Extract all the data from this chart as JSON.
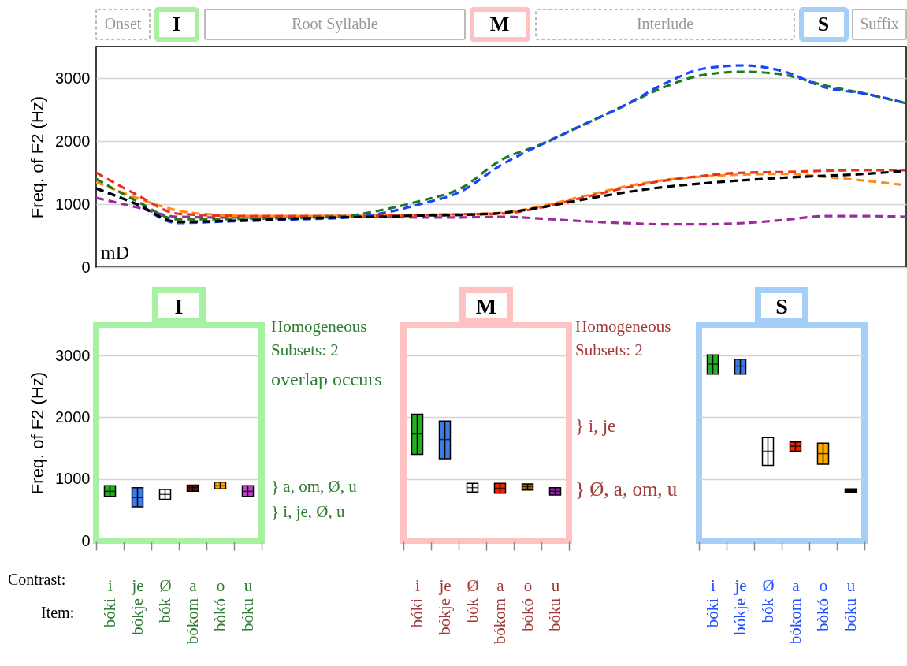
{
  "chart_data": [
    {
      "type": "line",
      "ylabel": "Freq. of F2 (Hz)",
      "categories": [
        null,
        null,
        null,
        null,
        null,
        null,
        null,
        null,
        null,
        null,
        null,
        null,
        null,
        null,
        null,
        null,
        null,
        null,
        null,
        null,
        null
      ],
      "ylim": [
        0,
        3500
      ],
      "yticks": [
        0,
        1000,
        2000,
        3000
      ],
      "grid": "y",
      "tick_labels": "y",
      "line_style": "dashed",
      "annotations": [
        "Onset",
        "I",
        "Root Syllable",
        "M",
        "Interlude",
        "S",
        "Suffix",
        "mD"
      ],
      "series": [
        {
          "color": "#9b2d9b",
          "values": [
            1100,
            950,
            800,
            790,
            790,
            800,
            810,
            800,
            790,
            790,
            800,
            770,
            730,
            700,
            680,
            680,
            700,
            750,
            810,
            810,
            800
          ]
        },
        {
          "color": "#ff8c1a",
          "values": [
            1350,
            1100,
            900,
            830,
            810,
            810,
            810,
            820,
            830,
            840,
            860,
            970,
            1120,
            1270,
            1380,
            1440,
            1470,
            1480,
            1430,
            1370,
            1300
          ]
        },
        {
          "color": "#e8331a",
          "values": [
            1500,
            1150,
            850,
            820,
            810,
            810,
            810,
            820,
            830,
            840,
            850,
            950,
            1100,
            1250,
            1370,
            1450,
            1500,
            1510,
            1530,
            1540,
            1540
          ]
        },
        {
          "color": "#1e7a1e",
          "values": [
            1400,
            1050,
            760,
            760,
            770,
            780,
            800,
            900,
            1050,
            1250,
            1700,
            1950,
            2250,
            2550,
            2850,
            3050,
            3100,
            3050,
            2880,
            2750,
            2600
          ]
        },
        {
          "color": "#1a44ff",
          "values": [
            1250,
            1000,
            700,
            720,
            740,
            760,
            780,
            850,
            1000,
            1200,
            1620,
            1950,
            2250,
            2550,
            2900,
            3150,
            3200,
            3100,
            2850,
            2750,
            2600
          ]
        },
        {
          "color": "#000000",
          "values": [
            1250,
            1000,
            720,
            730,
            750,
            770,
            790,
            800,
            820,
            830,
            860,
            950,
            1070,
            1180,
            1270,
            1330,
            1380,
            1420,
            1450,
            1480,
            1530
          ]
        }
      ]
    },
    {
      "type": "box",
      "title": "I",
      "ylabel": "Freq. of F2 (Hz)",
      "categories": [
        "i",
        "je",
        "Ø",
        "a",
        "o",
        "u"
      ],
      "ylim": [
        0,
        3500
      ],
      "yticks": [
        0,
        1000,
        2000,
        3000
      ],
      "grid": "y",
      "colors": [
        "#22b022",
        "#3d7be8",
        "#ffffff",
        "#7a0f0f",
        "#ffa500",
        "#c03fd0"
      ],
      "boxes": [
        {
          "low": 720,
          "q1": 720,
          "median": 800,
          "q3": 890,
          "high": 890
        },
        {
          "low": 550,
          "q1": 550,
          "median": 700,
          "q3": 860,
          "high": 860
        },
        {
          "low": 670,
          "q1": 670,
          "median": 750,
          "q3": 830,
          "high": 830
        },
        {
          "low": 800,
          "q1": 800,
          "median": 860,
          "q3": 900,
          "high": 900
        },
        {
          "low": 840,
          "q1": 840,
          "median": 890,
          "q3": 950,
          "high": 950
        },
        {
          "low": 720,
          "q1": 720,
          "median": 800,
          "q3": 890,
          "high": 890
        }
      ],
      "annotations": [
        "Homogeneous Subsets: 2",
        "overlap occurs",
        "} a, om, Ø, u",
        "}     i, je, Ø, u",
        "Contrast:",
        "Item:",
        "bóki",
        "bókje",
        "bók",
        "bókom",
        "bòkó",
        "bóku"
      ]
    },
    {
      "type": "box",
      "title": "M",
      "categories": [
        "i",
        "je",
        "Ø",
        "a",
        "o",
        "u"
      ],
      "ylim": [
        0,
        3500
      ],
      "yticks": [
        0,
        1000,
        2000,
        3000
      ],
      "grid": "y",
      "tick_labels": "x",
      "colors": [
        "#22b022",
        "#3d7be8",
        "#ffffff",
        "#ee2200",
        "#a06000",
        "#a020c0"
      ],
      "boxes": [
        {
          "low": 1400,
          "q1": 1400,
          "median": 1730,
          "q3": 2050,
          "high": 2050
        },
        {
          "low": 1330,
          "q1": 1330,
          "median": 1640,
          "q3": 1940,
          "high": 1940
        },
        {
          "low": 790,
          "q1": 790,
          "median": 860,
          "q3": 930,
          "high": 930
        },
        {
          "low": 770,
          "q1": 770,
          "median": 850,
          "q3": 930,
          "high": 930
        },
        {
          "low": 820,
          "q1": 820,
          "median": 880,
          "q3": 920,
          "high": 920
        },
        {
          "low": 740,
          "q1": 740,
          "median": 800,
          "q3": 860,
          "high": 860
        }
      ],
      "annotations": [
        "Homogeneous Subsets: 2",
        "} i, je",
        "} Ø, a, om, u",
        "bóki",
        "bókje",
        "bók",
        "bókom",
        "bòkó",
        "bóku"
      ]
    },
    {
      "type": "box",
      "title": "S",
      "categories": [
        "i",
        "je",
        "Ø",
        "a",
        "o",
        "u"
      ],
      "ylim": [
        0,
        3500
      ],
      "yticks": [
        0,
        1000,
        2000,
        3000
      ],
      "grid": "y",
      "tick_labels": "x",
      "colors": [
        "#22b022",
        "#3d7be8",
        "#ffffff",
        "#ee2200",
        "#ffaa00",
        "#000000"
      ],
      "boxes": [
        {
          "low": 2700,
          "q1": 2700,
          "median": 2860,
          "q3": 3010,
          "high": 3010
        },
        {
          "low": 2700,
          "q1": 2700,
          "median": 2830,
          "q3": 2940,
          "high": 2940
        },
        {
          "low": 1220,
          "q1": 1220,
          "median": 1450,
          "q3": 1670,
          "high": 1670
        },
        {
          "low": 1450,
          "q1": 1450,
          "median": 1530,
          "q3": 1600,
          "high": 1600
        },
        {
          "low": 1240,
          "q1": 1240,
          "median": 1410,
          "q3": 1580,
          "high": 1580
        },
        {
          "low": 780,
          "q1": 780,
          "median": 810,
          "q3": 840,
          "high": 840
        }
      ],
      "annotations": [
        "bóki",
        "bókje",
        "bók",
        "bókom",
        "bòkó",
        "bóku"
      ]
    }
  ]
}
